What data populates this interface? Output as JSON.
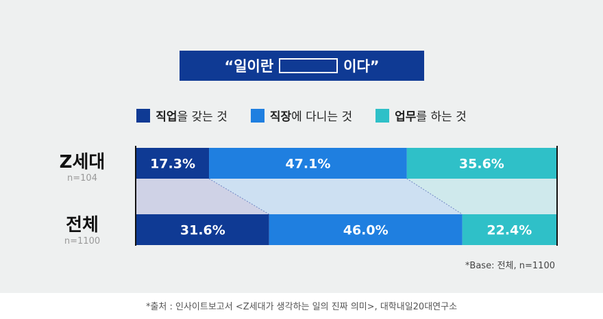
{
  "title": {
    "prefix": "“일이란",
    "suffix": "이다”"
  },
  "legend": [
    {
      "bold": "직업",
      "rest": "을 갖는 것",
      "color": "#0f3a94"
    },
    {
      "bold": "직장",
      "rest": "에 다니는 것",
      "color": "#1f7fe0"
    },
    {
      "bold": "업무",
      "rest": "를 하는 것",
      "color": "#2fc0c8"
    }
  ],
  "rows": [
    {
      "label": "Z세대",
      "n": "n=104"
    },
    {
      "label": "전체",
      "n": "n=1100"
    }
  ],
  "chart_data": {
    "type": "bar",
    "stacked": true,
    "orientation": "horizontal",
    "categories": [
      "Z세대",
      "전체"
    ],
    "series": [
      {
        "name": "직업을 갖는 것",
        "values": [
          17.3,
          31.6
        ],
        "labels": [
          "17.3%",
          "31.6%"
        ],
        "color": "#0f3a94"
      },
      {
        "name": "직장에 다니는 것",
        "values": [
          47.1,
          46.0
        ],
        "labels": [
          "47.1%",
          "46.0%"
        ],
        "color": "#1f7fe0"
      },
      {
        "name": "업무를 하는 것",
        "values": [
          35.6,
          22.4
        ],
        "labels": [
          "35.6%",
          "22.4%"
        ],
        "color": "#2fc0c8"
      }
    ],
    "connector_colors": [
      "#cfd2e6",
      "#cde0f2",
      "#cfe9ec"
    ]
  },
  "base_note": "*Base: 전체, n=1100",
  "source": "*출처 : 인사이트보고서 <Z세대가 생각하는 일의 진짜 의미>, 대학내일20대연구소"
}
